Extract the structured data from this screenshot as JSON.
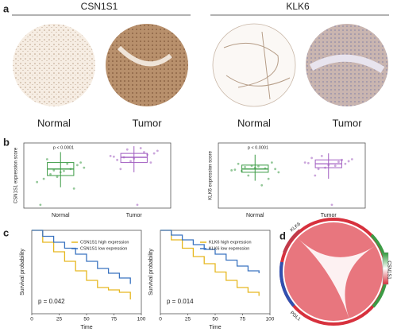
{
  "panel_labels": [
    "a",
    "b",
    "c",
    "d"
  ],
  "tissue": {
    "genes": [
      "CSN1S1",
      "KLK6"
    ],
    "conditions": [
      "Normal",
      "Tumor"
    ]
  },
  "boxplots": [
    {
      "ylabel": "CSN1S1 expression score",
      "categories": [
        "Normal",
        "Tumor"
      ],
      "p": "p < 0.0001",
      "ylim": [
        0,
        1
      ],
      "colors": [
        "#3c9b45",
        "#a05cc0"
      ],
      "groups": [
        {
          "low": 0.32,
          "q1": 0.5,
          "median": 0.6,
          "q3": 0.7,
          "high": 0.86,
          "points": [
            0.4,
            0.55,
            0.62,
            0.48,
            0.7,
            0.58,
            0.66,
            0.52,
            0.3,
            0.75,
            0.6,
            0.45,
            0.68,
            0.05,
            0.57
          ]
        },
        {
          "low": 0.55,
          "q1": 0.7,
          "median": 0.78,
          "q3": 0.84,
          "high": 0.95,
          "points": [
            0.8,
            0.76,
            0.88,
            0.72,
            0.84,
            0.9,
            0.7,
            0.78,
            0.82,
            0.6,
            0.86,
            0.74,
            0.92,
            0.79,
            0.05
          ]
        }
      ]
    },
    {
      "ylabel": "KLK6 expression score",
      "categories": [
        "Normal",
        "Tumor"
      ],
      "p": "p < 0.0001",
      "ylim": [
        0,
        1
      ],
      "colors": [
        "#3c9b45",
        "#a05cc0"
      ],
      "groups": [
        {
          "low": 0.42,
          "q1": 0.55,
          "median": 0.6,
          "q3": 0.66,
          "high": 0.82,
          "points": [
            0.58,
            0.62,
            0.55,
            0.65,
            0.6,
            0.5,
            0.7,
            0.63,
            0.45,
            0.57,
            0.61,
            0.68,
            0.35,
            0.59,
            0.64
          ]
        },
        {
          "low": 0.45,
          "q1": 0.62,
          "median": 0.68,
          "q3": 0.74,
          "high": 0.84,
          "points": [
            0.7,
            0.66,
            0.75,
            0.62,
            0.72,
            0.8,
            0.68,
            0.6,
            0.74,
            0.5,
            0.71,
            0.77,
            0.65,
            0.69,
            0.05
          ]
        }
      ]
    }
  ],
  "km": [
    {
      "ylabel": "Survival probability",
      "xlabel": "Time",
      "p": "p = 0.042",
      "xlim": [
        0,
        100
      ],
      "ylim": [
        0.3,
        1.0
      ],
      "xticks": [
        0,
        25,
        50,
        75,
        100
      ],
      "series": [
        {
          "name": "CSN1S1 high expression",
          "color": "#e6b820",
          "x": [
            0,
            10,
            20,
            30,
            40,
            50,
            60,
            70,
            80,
            90
          ],
          "values": [
            1,
            0.9,
            0.82,
            0.74,
            0.66,
            0.58,
            0.52,
            0.5,
            0.48,
            0.42
          ]
        },
        {
          "name": "CSN1S1 low expression",
          "color": "#3a73c0",
          "x": [
            0,
            10,
            20,
            30,
            40,
            50,
            60,
            70,
            80,
            90
          ],
          "values": [
            1,
            0.95,
            0.9,
            0.85,
            0.8,
            0.74,
            0.68,
            0.64,
            0.6,
            0.55
          ]
        }
      ]
    },
    {
      "ylabel": "Survival probability",
      "xlabel": "Time",
      "p": "p = 0.014",
      "xlim": [
        0,
        100
      ],
      "ylim": [
        0.3,
        1.0
      ],
      "xticks": [
        0,
        25,
        50,
        75,
        100
      ],
      "series": [
        {
          "name": "KLK6 high expression",
          "color": "#e6b820",
          "x": [
            0,
            10,
            20,
            30,
            40,
            50,
            60,
            70,
            80,
            90
          ],
          "values": [
            1,
            0.92,
            0.85,
            0.78,
            0.72,
            0.65,
            0.58,
            0.52,
            0.48,
            0.45
          ]
        },
        {
          "name": "KLK6 low expression",
          "color": "#3a73c0",
          "x": [
            0,
            10,
            20,
            30,
            40,
            50,
            60,
            70,
            80,
            90
          ],
          "values": [
            1,
            0.96,
            0.92,
            0.88,
            0.84,
            0.8,
            0.75,
            0.7,
            0.66,
            0.64
          ]
        }
      ]
    }
  ],
  "chord": {
    "labels": [
      "KLK6",
      "CSN1S1",
      "PDL1"
    ]
  }
}
